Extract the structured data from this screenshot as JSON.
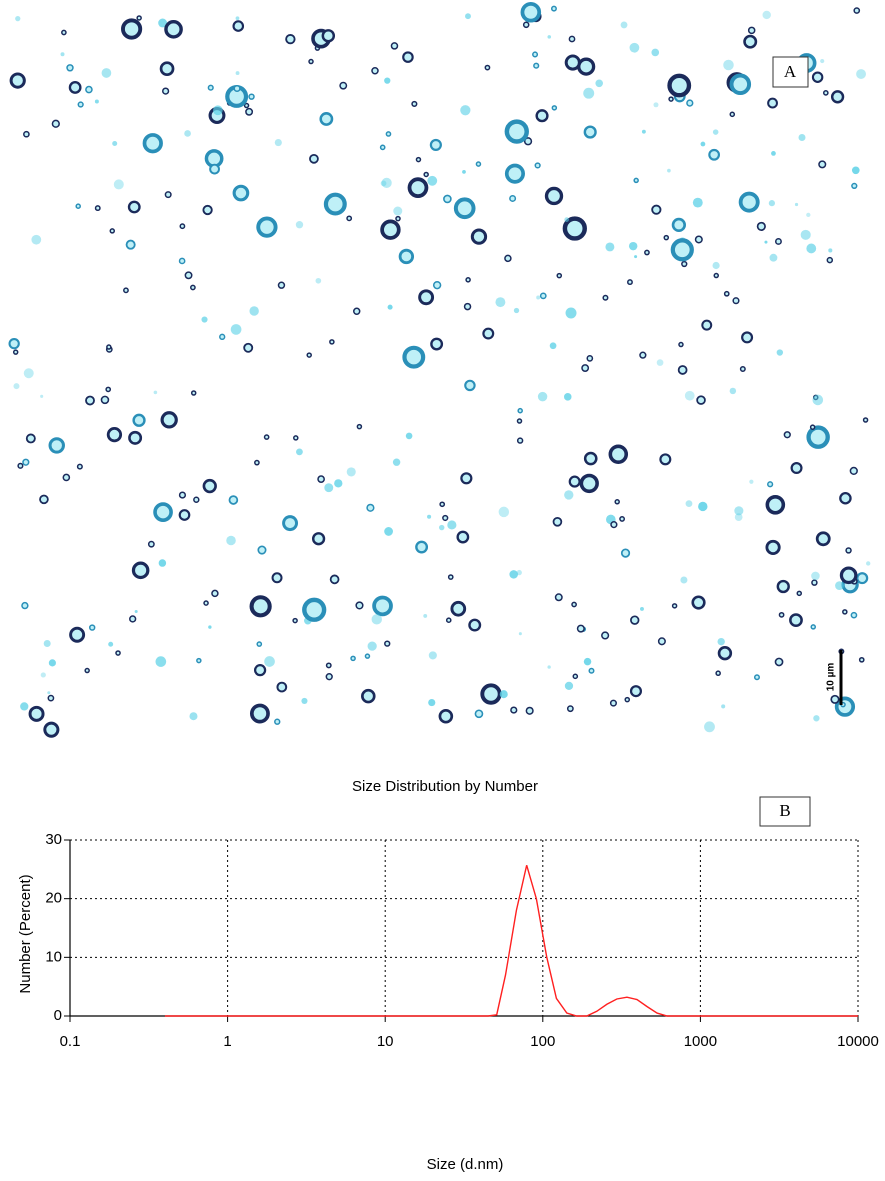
{
  "image_panel": {
    "label": "A",
    "scale_bar": "10 µm"
  },
  "chart_data": {
    "type": "line",
    "title": "Size Distribution by Number",
    "panel_label": "B",
    "x_label": "Size (d.nm)",
    "y_label": "Number (Percent)",
    "xscale": "log",
    "xlim": [
      0.1,
      10000
    ],
    "ylim": [
      0,
      30
    ],
    "xticks": [
      0.1,
      1,
      10,
      100,
      1000,
      10000
    ],
    "yticks": [
      0,
      10,
      20,
      30
    ],
    "grid": true,
    "x": [
      0.4,
      1,
      10,
      45,
      51,
      58,
      68,
      79,
      91,
      106,
      122,
      142,
      164,
      190,
      220,
      255,
      295,
      342,
      396,
      459,
      531,
      615,
      1000,
      10000
    ],
    "series": [
      {
        "color": "#ff2020",
        "values": [
          0,
          0,
          0,
          0,
          0.2,
          7,
          18,
          25.7,
          20,
          10,
          3,
          0.5,
          0,
          0,
          0.8,
          2,
          2.9,
          3.2,
          2.8,
          1.6,
          0.5,
          0,
          0,
          0
        ]
      }
    ]
  }
}
